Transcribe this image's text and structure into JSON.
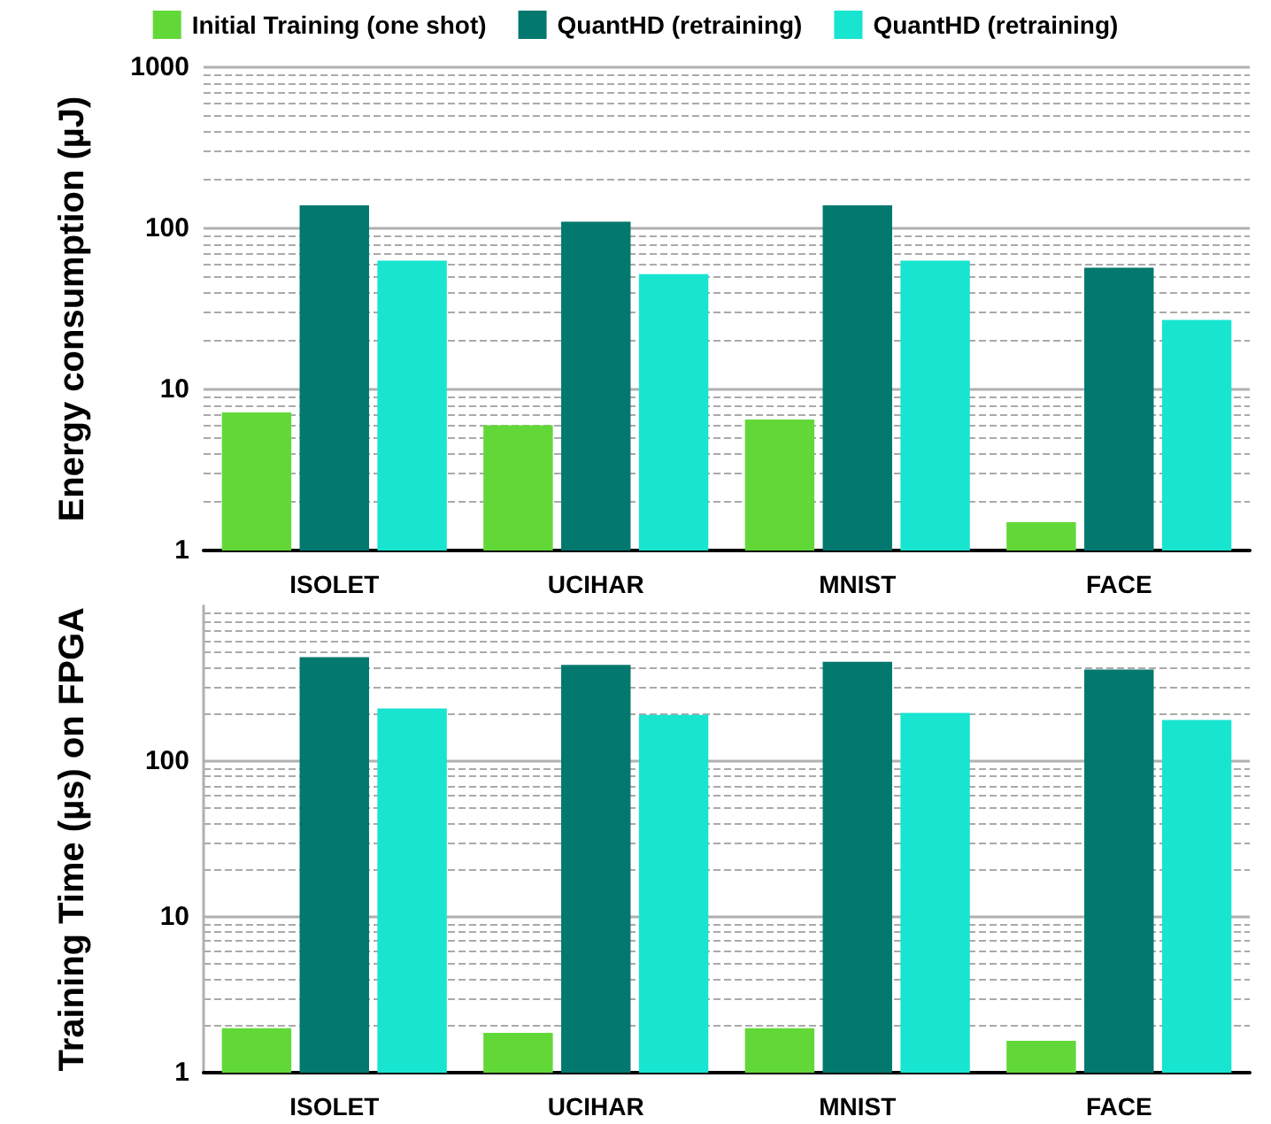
{
  "chart_data": [
    {
      "type": "bar",
      "ylabel": "Energy consumption (µJ)",
      "categories": [
        "ISOLET",
        "UCIHAR",
        "MNIST",
        "FACE"
      ],
      "series": [
        {
          "name": "Initial Training (one shot)",
          "color": "#62d838",
          "values": [
            7.2,
            6.0,
            6.5,
            1.5
          ]
        },
        {
          "name": "QuantHD (retraining)",
          "color": "#02786e",
          "values": [
            139,
            110,
            139,
            57
          ]
        },
        {
          "name": "QuantHD (retraining)",
          "color": "#17e5d0",
          "values": [
            63,
            52,
            63,
            27
          ]
        }
      ],
      "log": "y",
      "ylim": [
        1,
        1000
      ],
      "yticks": [
        1,
        10,
        100,
        1000
      ],
      "grid": "y",
      "legend": "top"
    },
    {
      "type": "bar",
      "ylabel": "Training Time (µs) on FPGA",
      "categories": [
        "ISOLET",
        "UCIHAR",
        "MNIST",
        "FACE"
      ],
      "series": [
        {
          "color": "#62d838",
          "values": [
            1.93,
            1.8,
            1.93,
            1.6
          ]
        },
        {
          "color": "#02786e",
          "values": [
            468,
            417,
            437,
            390
          ]
        },
        {
          "color": "#17e5d0",
          "values": [
            219,
            199,
            205,
            185
          ]
        }
      ],
      "log": "y",
      "ylim": [
        1,
        1000
      ],
      "yticks": [
        1,
        10,
        100
      ],
      "grid": "y",
      "legend": false
    }
  ]
}
